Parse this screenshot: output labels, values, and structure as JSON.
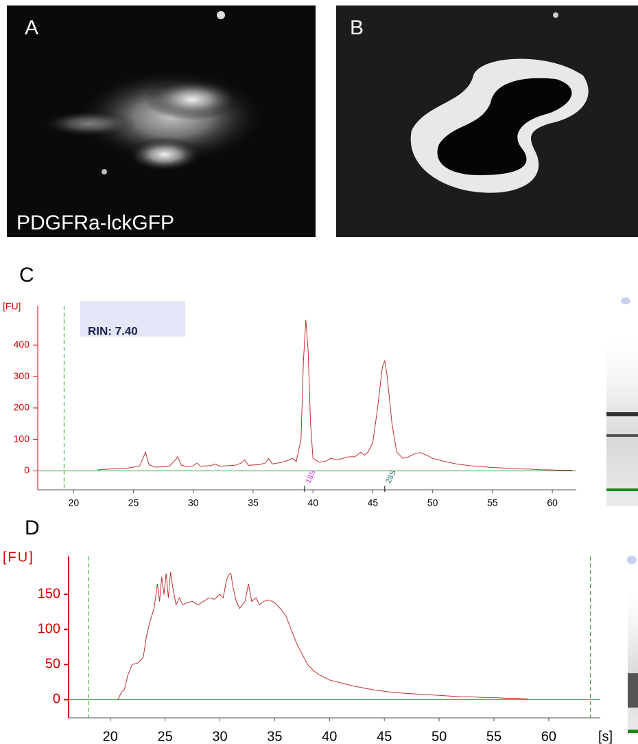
{
  "images": [
    {
      "label": "A",
      "caption": "PDGFRa-lckGFP"
    },
    {
      "label": "B"
    }
  ],
  "chart_data": [
    {
      "type": "line",
      "panel": "C",
      "ylabel": "[FU]",
      "annotation": "RIN: 7.40",
      "xlim": [
        17,
        62
      ],
      "xticks": [
        20,
        25,
        30,
        35,
        40,
        45,
        50,
        55,
        60
      ],
      "ylim": [
        -60,
        525
      ],
      "yticks": [
        0,
        100,
        200,
        300,
        400
      ],
      "x_markers": [
        19.2
      ],
      "peaks": [
        {
          "label": "18S",
          "x": 39.3,
          "color": "#e040e0"
        },
        {
          "label": "28S",
          "x": 46.0,
          "color": "#2a7070"
        }
      ],
      "x": [
        22,
        22.5,
        23,
        23.5,
        24,
        24.5,
        25,
        25.5,
        25.8,
        26,
        26.3,
        26.8,
        27.5,
        28,
        28.5,
        28.7,
        29,
        29.5,
        30,
        30.3,
        30.6,
        31.5,
        31.8,
        32.2,
        33,
        33.5,
        34,
        34.3,
        34.6,
        35.5,
        36,
        36.3,
        36.6,
        37.5,
        38,
        38.3,
        38.6,
        39,
        39.2,
        39.4,
        39.6,
        39.8,
        40,
        40.5,
        41,
        41.5,
        42,
        42.5,
        43,
        43.5,
        44,
        44.3,
        44.6,
        45,
        45.4,
        45.8,
        46,
        46.2,
        46.6,
        47,
        47.5,
        48,
        48.5,
        49,
        49.5,
        50,
        51,
        52,
        53,
        54,
        55,
        56,
        57,
        58,
        59,
        60,
        61,
        61.7
      ],
      "series": [
        {
          "color": "#c03030",
          "values": [
            3,
            5,
            6,
            7,
            8,
            9,
            12,
            15,
            40,
            60,
            20,
            12,
            13,
            15,
            35,
            45,
            18,
            14,
            16,
            25,
            15,
            17,
            22,
            15,
            17,
            18,
            25,
            35,
            18,
            20,
            25,
            40,
            22,
            28,
            35,
            40,
            30,
            100,
            350,
            480,
            380,
            150,
            40,
            28,
            30,
            40,
            35,
            40,
            45,
            45,
            60,
            50,
            60,
            90,
            200,
            330,
            350,
            300,
            150,
            60,
            40,
            45,
            55,
            58,
            50,
            40,
            30,
            22,
            17,
            14,
            11,
            9,
            7,
            6,
            4,
            3,
            2,
            2
          ]
        }
      ]
    },
    {
      "type": "line",
      "panel": "D",
      "ylabel": "[FU]",
      "xlabel": "[s]",
      "xlim": [
        16.2,
        64.7
      ],
      "xticks": [
        20,
        25,
        30,
        35,
        40,
        45,
        50,
        55,
        60
      ],
      "ylim": [
        -26,
        204
      ],
      "yticks": [
        0,
        50,
        100,
        150
      ],
      "x_markers": [
        18,
        63.8
      ],
      "x": [
        20.7,
        21,
        21.3,
        21.6,
        22,
        22.5,
        23,
        23.3,
        23.6,
        24,
        24.3,
        24.5,
        24.7,
        24.9,
        25.1,
        25.3,
        25.5,
        25.7,
        26,
        26.3,
        26.6,
        27,
        27.5,
        28,
        28.5,
        29,
        29.5,
        30,
        30.3,
        30.6,
        30.8,
        31,
        31.2,
        31.5,
        31.8,
        32.3,
        32.6,
        32.9,
        33.3,
        33.6,
        34,
        34.5,
        35,
        35.5,
        36,
        36.5,
        37,
        37.5,
        38,
        38.5,
        39,
        39.5,
        40,
        41,
        42,
        43,
        44,
        45,
        46,
        47,
        48,
        49,
        50,
        51,
        52,
        53,
        54,
        55,
        56,
        57,
        58,
        58.1
      ],
      "series": [
        {
          "color": "#c03030",
          "values": [
            0,
            10,
            15,
            35,
            50,
            52,
            60,
            90,
            110,
            130,
            165,
            140,
            175,
            150,
            180,
            145,
            182,
            160,
            135,
            145,
            135,
            138,
            140,
            135,
            140,
            145,
            143,
            150,
            145,
            170,
            178,
            180,
            160,
            140,
            130,
            140,
            165,
            140,
            145,
            135,
            140,
            142,
            138,
            130,
            120,
            100,
            80,
            65,
            50,
            42,
            36,
            32,
            28,
            24,
            20,
            17,
            14,
            12,
            10,
            9,
            8,
            7,
            6,
            5,
            4,
            4,
            3,
            3,
            2,
            2,
            1,
            0
          ]
        }
      ]
    }
  ]
}
